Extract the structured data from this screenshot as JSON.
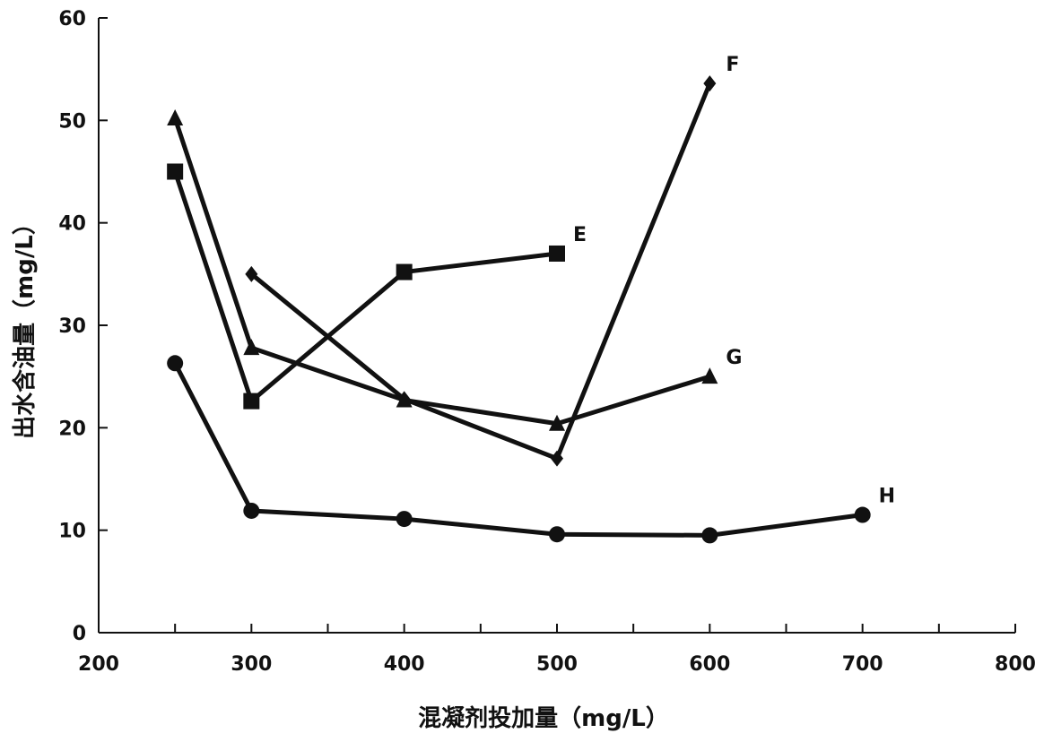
{
  "chart_data": {
    "type": "line",
    "title": "",
    "xlabel": "混凝剂投加量（mg/L）",
    "ylabel": "出水含油量（mg/L）",
    "xlim": [
      200,
      800
    ],
    "ylim": [
      0,
      60
    ],
    "x_ticks": [
      200,
      300,
      400,
      500,
      600,
      700,
      800
    ],
    "y_ticks": [
      0,
      10,
      20,
      30,
      40,
      50,
      60
    ],
    "x_minor_step": 50,
    "grid": false,
    "legend": "none",
    "line_color": "#111111",
    "series": [
      {
        "name": "E",
        "marker": "square",
        "x": [
          250,
          300,
          400,
          500
        ],
        "y": [
          45,
          22.6,
          35.2,
          37
        ]
      },
      {
        "name": "F",
        "marker": "diamond",
        "x": [
          300,
          400,
          500,
          600
        ],
        "y": [
          35,
          22.8,
          17,
          53.6
        ]
      },
      {
        "name": "G",
        "marker": "triangle",
        "x": [
          250,
          300,
          400,
          500,
          600
        ],
        "y": [
          50.2,
          27.8,
          22.7,
          20.4,
          25
        ]
      },
      {
        "name": "H",
        "marker": "circle",
        "x": [
          250,
          300,
          400,
          500,
          600,
          700
        ],
        "y": [
          26.3,
          11.9,
          11.1,
          9.6,
          9.5,
          11.5
        ]
      }
    ]
  }
}
